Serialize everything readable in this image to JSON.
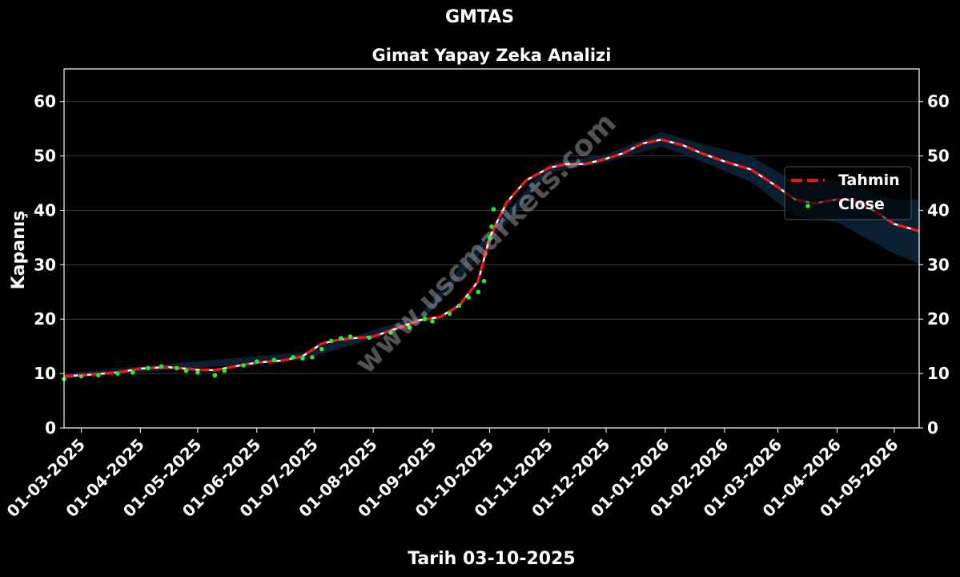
{
  "chart_data": {
    "type": "line",
    "title": "GMTAS",
    "subtitle": "Gimat Yapay Zeka Analizi",
    "xlabel": "Tarih 03-10-2025",
    "ylabel": "Kapanış",
    "watermark": "www.uscmarkets.com",
    "x_domain": [
      "2025-02-20",
      "2026-05-14"
    ],
    "ylim": [
      0,
      66
    ],
    "yticks": [
      0,
      10,
      20,
      30,
      40,
      50,
      60
    ],
    "xticks": [
      "01-03-2025",
      "01-04-2025",
      "01-05-2025",
      "01-06-2025",
      "01-07-2025",
      "01-08-2025",
      "01-09-2025",
      "01-10-2025",
      "01-11-2025",
      "01-12-2025",
      "01-01-2026",
      "01-02-2026",
      "01-03-2026",
      "01-04-2026",
      "01-05-2026"
    ],
    "xtick_dates": [
      "2025-03-01",
      "2025-04-01",
      "2025-05-01",
      "2025-06-01",
      "2025-07-01",
      "2025-08-01",
      "2025-09-01",
      "2025-10-01",
      "2025-11-01",
      "2025-12-01",
      "2026-01-01",
      "2026-02-01",
      "2026-03-01",
      "2026-04-01",
      "2026-05-01"
    ],
    "grid": true,
    "legend": {
      "position": "right",
      "entries": [
        "Tahmin",
        "Close"
      ]
    },
    "colors": {
      "background": "#000000",
      "tahmin": "#e41a1c",
      "tahmin_core": "#ffffff",
      "close": "#22ee22",
      "band": "#0b2236",
      "grid": "#3a3a3a"
    },
    "series": [
      {
        "name": "Tahmin",
        "style": "dashed",
        "points": [
          [
            "2025-02-20",
            9.5
          ],
          [
            "2025-03-05",
            9.8
          ],
          [
            "2025-03-20",
            10.2
          ],
          [
            "2025-04-01",
            10.9
          ],
          [
            "2025-04-15",
            11.2
          ],
          [
            "2025-05-01",
            10.7
          ],
          [
            "2025-05-10",
            10.6
          ],
          [
            "2025-05-20",
            11.3
          ],
          [
            "2025-06-01",
            12.0
          ],
          [
            "2025-06-15",
            12.4
          ],
          [
            "2025-06-25",
            13.2
          ],
          [
            "2025-07-05",
            15.5
          ],
          [
            "2025-07-15",
            16.3
          ],
          [
            "2025-08-01",
            16.8
          ],
          [
            "2025-08-15",
            18.5
          ],
          [
            "2025-08-25",
            19.8
          ],
          [
            "2025-09-05",
            20.4
          ],
          [
            "2025-09-15",
            22.5
          ],
          [
            "2025-09-25",
            27.0
          ],
          [
            "2025-10-01",
            35.0
          ],
          [
            "2025-10-05",
            38.0
          ],
          [
            "2025-10-10",
            41.5
          ],
          [
            "2025-10-20",
            45.5
          ],
          [
            "2025-11-01",
            47.8
          ],
          [
            "2025-11-10",
            48.5
          ],
          [
            "2025-11-20",
            48.5
          ],
          [
            "2025-12-01",
            49.5
          ],
          [
            "2025-12-10",
            50.5
          ],
          [
            "2025-12-20",
            52.3
          ],
          [
            "2025-12-30",
            53.0
          ],
          [
            "2026-01-10",
            52.0
          ],
          [
            "2026-01-20",
            50.5
          ],
          [
            "2026-02-01",
            49.0
          ],
          [
            "2026-02-15",
            47.5
          ],
          [
            "2026-02-28",
            44.5
          ],
          [
            "2026-03-10",
            42.0
          ],
          [
            "2026-03-20",
            41.3
          ],
          [
            "2026-04-01",
            42.0
          ],
          [
            "2026-04-10",
            41.8
          ],
          [
            "2026-04-20",
            40.0
          ],
          [
            "2026-05-01",
            37.5
          ],
          [
            "2026-05-14",
            36.2
          ]
        ],
        "band": [
          [
            "2025-02-20",
            9.0,
            10.0
          ],
          [
            "2025-04-15",
            10.6,
            11.8
          ],
          [
            "2025-06-25",
            12.5,
            13.9
          ],
          [
            "2025-08-25",
            19.0,
            20.6
          ],
          [
            "2025-10-01",
            34.0,
            36.0
          ],
          [
            "2025-11-01",
            47.0,
            48.6
          ],
          [
            "2025-12-01",
            48.8,
            50.3
          ],
          [
            "2025-12-30",
            51.8,
            54.4
          ],
          [
            "2026-01-20",
            49.0,
            52.2
          ],
          [
            "2026-02-15",
            45.2,
            50.0
          ],
          [
            "2026-03-10",
            39.0,
            45.2
          ],
          [
            "2026-04-01",
            37.8,
            45.5
          ],
          [
            "2026-05-01",
            32.0,
            42.0
          ],
          [
            "2026-05-14",
            30.2,
            42.0
          ]
        ]
      },
      {
        "name": "Close",
        "style": "dots",
        "points": [
          [
            "2025-02-20",
            9.0
          ],
          [
            "2025-03-01",
            9.5
          ],
          [
            "2025-03-10",
            9.7
          ],
          [
            "2025-03-20",
            10.0
          ],
          [
            "2025-03-28",
            10.2
          ],
          [
            "2025-04-05",
            11.0
          ],
          [
            "2025-04-12",
            11.3
          ],
          [
            "2025-04-20",
            11.0
          ],
          [
            "2025-04-25",
            10.5
          ],
          [
            "2025-05-01",
            10.2
          ],
          [
            "2025-05-10",
            9.7
          ],
          [
            "2025-05-15",
            10.5
          ],
          [
            "2025-05-25",
            11.5
          ],
          [
            "2025-06-01",
            12.2
          ],
          [
            "2025-06-10",
            12.5
          ],
          [
            "2025-06-20",
            13.0
          ],
          [
            "2025-06-25",
            12.8
          ],
          [
            "2025-06-30",
            13.0
          ],
          [
            "2025-07-05",
            14.5
          ],
          [
            "2025-07-10",
            16.0
          ],
          [
            "2025-07-15",
            16.5
          ],
          [
            "2025-07-20",
            16.8
          ],
          [
            "2025-07-30",
            16.6
          ],
          [
            "2025-08-10",
            17.5
          ],
          [
            "2025-08-20",
            18.5
          ],
          [
            "2025-08-28",
            20.0
          ],
          [
            "2025-09-01",
            19.6
          ],
          [
            "2025-09-10",
            21.0
          ],
          [
            "2025-09-15",
            22.5
          ],
          [
            "2025-09-20",
            24.0
          ],
          [
            "2025-09-25",
            25.0
          ],
          [
            "2025-09-28",
            27.0
          ],
          [
            "2025-10-01",
            35.0
          ],
          [
            "2025-10-02",
            37.0
          ],
          [
            "2025-10-03",
            40.2
          ]
        ]
      }
    ]
  }
}
